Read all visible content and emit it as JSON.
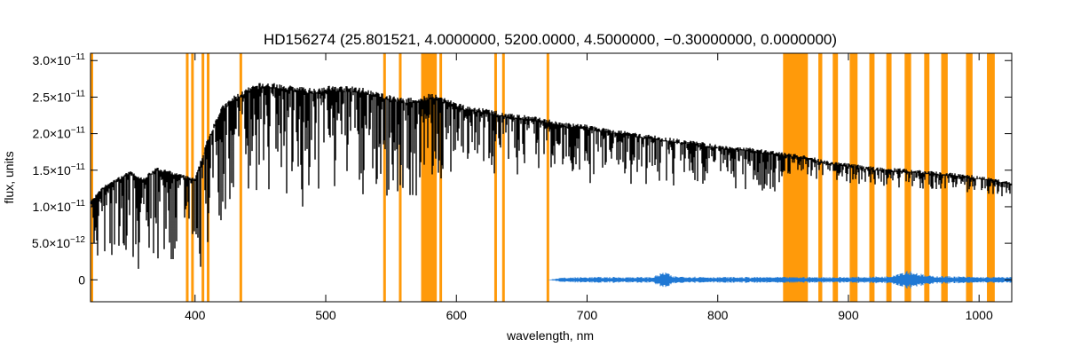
{
  "chart_data": {
    "type": "line",
    "title": "HD156274    (25.801521, 4.0000000, 5200.0000, 4.5000000, −0.30000000, 0.0000000)",
    "xlabel": "wavelength, nm",
    "ylabel": "flux, units",
    "xlim": [
      320,
      1025
    ],
    "ylim": [
      -3e-12,
      3.1e-11
    ],
    "x_ticks": [
      {
        "value": 400,
        "label": "400"
      },
      {
        "value": 500,
        "label": "500"
      },
      {
        "value": 600,
        "label": "600"
      },
      {
        "value": 700,
        "label": "700"
      },
      {
        "value": 800,
        "label": "800"
      },
      {
        "value": 900,
        "label": "900"
      },
      {
        "value": 1000,
        "label": "1000"
      }
    ],
    "y_ticks": [
      {
        "value": 0,
        "mantissa": "0",
        "exp": ""
      },
      {
        "value": 5e-12,
        "mantissa": "5.0×10",
        "exp": "−12"
      },
      {
        "value": 1e-11,
        "mantissa": "1.0×10",
        "exp": "−11"
      },
      {
        "value": 1.5e-11,
        "mantissa": "1.5×10",
        "exp": "−11"
      },
      {
        "value": 2e-11,
        "mantissa": "2.0×10",
        "exp": "−11"
      },
      {
        "value": 2.5e-11,
        "mantissa": "2.5×10",
        "exp": "−11"
      },
      {
        "value": 3e-11,
        "mantissa": "3.0×10",
        "exp": "−11"
      }
    ],
    "masked_regions": [
      [
        320,
        321
      ],
      [
        393,
        395
      ],
      [
        397,
        399
      ],
      [
        405,
        407
      ],
      [
        409,
        411
      ],
      [
        434,
        436
      ],
      [
        544,
        546
      ],
      [
        556,
        558
      ],
      [
        573,
        585
      ],
      [
        587,
        589
      ],
      [
        629,
        631
      ],
      [
        635,
        637
      ],
      [
        669,
        671
      ],
      [
        850,
        869
      ],
      [
        877,
        880
      ],
      [
        888,
        892
      ],
      [
        901,
        907
      ],
      [
        916,
        920
      ],
      [
        929,
        933
      ],
      [
        943,
        948
      ],
      [
        958,
        962
      ],
      [
        971,
        976
      ],
      [
        990,
        995
      ],
      [
        1006,
        1012
      ]
    ],
    "series": [
      {
        "color": "#000000",
        "x": [
          320,
          330,
          340,
          350,
          360,
          370,
          380,
          390,
          400,
          410,
          420,
          430,
          440,
          450,
          460,
          470,
          480,
          490,
          500,
          510,
          520,
          530,
          540,
          550,
          560,
          570,
          576,
          580,
          590,
          600,
          620,
          640,
          660,
          680,
          700,
          720,
          740,
          760,
          780,
          800,
          820,
          840,
          849,
          869,
          880,
          900,
          920,
          940,
          960,
          980,
          1000,
          1010,
          1020,
          1025
        ],
        "values": [
          1.05e-11,
          1.25e-11,
          1.35e-11,
          1.45e-11,
          1.35e-11,
          1.5e-11,
          1.45e-11,
          1.4e-11,
          1.35e-11,
          1.9e-11,
          2.3e-11,
          2.45e-11,
          2.55e-11,
          2.62e-11,
          2.62e-11,
          2.6e-11,
          2.57e-11,
          2.55e-11,
          2.58e-11,
          2.58e-11,
          2.57e-11,
          2.55e-11,
          2.5e-11,
          2.45e-11,
          2.42e-11,
          2.42e-11,
          2.45e-11,
          2.48e-11,
          2.43e-11,
          2.35e-11,
          2.28e-11,
          2.22e-11,
          2.17e-11,
          2.1e-11,
          2.06e-11,
          2e-11,
          1.95e-11,
          1.9e-11,
          1.85e-11,
          1.8e-11,
          1.77e-11,
          1.72e-11,
          1.7e-11,
          1.65e-11,
          1.6e-11,
          1.55e-11,
          1.5e-11,
          1.48e-11,
          1.45e-11,
          1.42e-11,
          1.38e-11,
          1.35e-11,
          1.32e-11,
          1.3e-11
        ]
      },
      {
        "color": "#1f78d4",
        "x": [
          320,
          400,
          500,
          600,
          670,
          680,
          700,
          750,
          760,
          765,
          800,
          850,
          900,
          930,
          945,
          960,
          1000,
          1025
        ],
        "values": [
          0.0,
          0.0,
          0.0,
          0.0,
          0.0,
          3e-13,
          4e-13,
          4e-13,
          1.2e-12,
          5e-13,
          4e-13,
          4e-13,
          4e-13,
          5e-13,
          1.4e-12,
          6e-13,
          4e-13,
          4e-13
        ]
      }
    ]
  }
}
